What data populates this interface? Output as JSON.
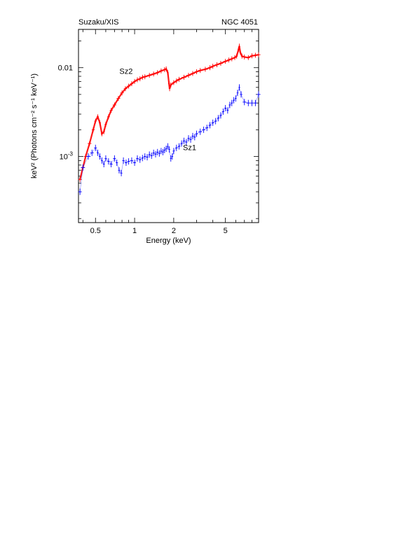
{
  "header": {
    "left": "Suzaku/XIS",
    "right": "NGC 4051"
  },
  "chart_data": {
    "type": "scatter",
    "xlabel": "Energy (keV)",
    "ylabel": "keV² (Photons cm⁻² s⁻¹ keV⁻¹)",
    "xscale": "log",
    "yscale": "log",
    "xlim": [
      0.37,
      9.0
    ],
    "ylim": [
      0.00018,
      0.027
    ],
    "x_ticks": [
      {
        "value": 0.5,
        "label": "0.5"
      },
      {
        "value": 1,
        "label": "1"
      },
      {
        "value": 2,
        "label": "2"
      },
      {
        "value": 5,
        "label": "5"
      }
    ],
    "y_ticks": [
      {
        "value": 0.01,
        "label": "0.01"
      },
      {
        "value": 0.001,
        "label": "10",
        "sup": "-3"
      }
    ],
    "grid": false,
    "series": [
      {
        "name": "Sz2",
        "color": "#ff0000",
        "label_position": {
          "x": 0.86,
          "y": 0.0085
        },
        "x": [
          0.38,
          0.4,
          0.42,
          0.45,
          0.48,
          0.5,
          0.52,
          0.54,
          0.56,
          0.58,
          0.6,
          0.63,
          0.66,
          0.7,
          0.75,
          0.8,
          0.85,
          0.9,
          0.95,
          1.0,
          1.05,
          1.1,
          1.15,
          1.2,
          1.3,
          1.4,
          1.5,
          1.6,
          1.7,
          1.75,
          1.8,
          1.84,
          1.86,
          1.9,
          2.0,
          2.1,
          2.2,
          2.4,
          2.6,
          2.8,
          3.0,
          3.2,
          3.5,
          3.8,
          4.0,
          4.3,
          4.6,
          5.0,
          5.3,
          5.6,
          5.9,
          6.1,
          6.3,
          6.4,
          6.5,
          6.7,
          7.0,
          7.5,
          8.0,
          8.5,
          9.0
        ],
        "y": [
          0.00055,
          0.00075,
          0.001,
          0.0014,
          0.002,
          0.0025,
          0.0028,
          0.0024,
          0.0018,
          0.0019,
          0.0023,
          0.0028,
          0.0033,
          0.0038,
          0.0045,
          0.0052,
          0.0058,
          0.0062,
          0.0066,
          0.007,
          0.0073,
          0.0075,
          0.0078,
          0.0079,
          0.0082,
          0.0085,
          0.0088,
          0.0092,
          0.0095,
          0.0097,
          0.0088,
          0.0066,
          0.0058,
          0.0064,
          0.0068,
          0.0071,
          0.0074,
          0.0078,
          0.0082,
          0.0086,
          0.009,
          0.0093,
          0.0096,
          0.01,
          0.0104,
          0.0108,
          0.0112,
          0.0118,
          0.0122,
          0.0126,
          0.013,
          0.0135,
          0.016,
          0.0175,
          0.015,
          0.0135,
          0.0132,
          0.013,
          0.0136,
          0.0138,
          0.014
        ]
      },
      {
        "name": "Sz1",
        "color": "#0000ff",
        "label_position": {
          "x": 2.65,
          "y": 0.00118
        },
        "x": [
          0.38,
          0.4,
          0.44,
          0.47,
          0.5,
          0.52,
          0.54,
          0.56,
          0.58,
          0.6,
          0.63,
          0.66,
          0.7,
          0.73,
          0.76,
          0.79,
          0.82,
          0.86,
          0.9,
          0.95,
          1.0,
          1.05,
          1.1,
          1.15,
          1.2,
          1.25,
          1.3,
          1.35,
          1.4,
          1.45,
          1.5,
          1.55,
          1.6,
          1.65,
          1.7,
          1.75,
          1.8,
          1.85,
          1.9,
          1.95,
          2.0,
          2.1,
          2.2,
          2.3,
          2.4,
          2.5,
          2.6,
          2.7,
          2.8,
          2.9,
          3.0,
          3.2,
          3.4,
          3.6,
          3.8,
          4.0,
          4.2,
          4.4,
          4.6,
          4.8,
          5.0,
          5.2,
          5.4,
          5.6,
          5.8,
          6.0,
          6.2,
          6.4,
          6.6,
          7.0,
          7.5,
          8.0,
          8.5,
          9.0
        ],
        "y": [
          0.0004,
          0.00075,
          0.001,
          0.0011,
          0.00125,
          0.0011,
          0.001,
          0.0009,
          0.00082,
          0.00095,
          0.00088,
          0.00082,
          0.00095,
          0.00085,
          0.0007,
          0.00065,
          0.0009,
          0.00085,
          0.00088,
          0.0009,
          0.00085,
          0.00095,
          0.00092,
          0.00096,
          0.001,
          0.00098,
          0.00105,
          0.00102,
          0.0011,
          0.00106,
          0.00112,
          0.00108,
          0.00115,
          0.00112,
          0.00118,
          0.00122,
          0.0013,
          0.0012,
          0.00095,
          0.001,
          0.00115,
          0.00125,
          0.0013,
          0.0014,
          0.0015,
          0.00145,
          0.0016,
          0.00155,
          0.0017,
          0.00165,
          0.0018,
          0.0019,
          0.002,
          0.0021,
          0.00225,
          0.0024,
          0.0025,
          0.0027,
          0.0029,
          0.0032,
          0.0035,
          0.0033,
          0.0038,
          0.004,
          0.0043,
          0.0045,
          0.0052,
          0.006,
          0.005,
          0.0041,
          0.004,
          0.004,
          0.004,
          0.005
        ]
      }
    ]
  }
}
